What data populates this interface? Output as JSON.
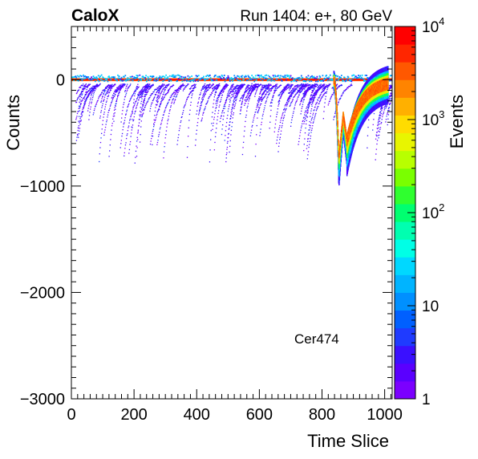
{
  "header": {
    "experiment": "CaloX",
    "run_info": "Run 1404: e+, 80 GeV"
  },
  "annotation": "Cer474",
  "chart_data": {
    "type": "heatmap",
    "xlabel": "Time Slice",
    "ylabel": "Counts",
    "zlabel": "Events",
    "xlim": [
      0,
      1024
    ],
    "ylim": [
      -3000,
      500
    ],
    "zlim": [
      1,
      10000
    ],
    "zscale": "log",
    "xticks": [
      0,
      200,
      400,
      600,
      800,
      1000
    ],
    "yticks": [
      0,
      -1000,
      -2000,
      -3000
    ],
    "xtick_labels": [
      "0",
      "200",
      "400",
      "600",
      "800",
      "1000"
    ],
    "ytick_labels": [
      "0",
      "−1000",
      "−2000",
      "−3000"
    ],
    "ztick_labels": {
      "1": "1",
      "10": "10",
      "100": "10",
      "1000": "10",
      "10000": "10"
    },
    "ztick_exponents": {
      "100": "2",
      "1000": "3",
      "10000": "4"
    },
    "baseline": {
      "y": 0,
      "x_range": [
        0,
        1024
      ],
      "z": 10000
    },
    "signal_pulse": {
      "peak_x": [
        855,
        880
      ],
      "main_peak": {
        "x": 855,
        "y_min": -920,
        "rise_start": 840
      },
      "second_peak": {
        "x": 878,
        "y_min": -720
      },
      "tail_end_x": 1000
    },
    "noise_pulses": {
      "x_range": [
        0,
        1024
      ],
      "depth_range": [
        -60,
        -780
      ],
      "typical_depth": -400
    },
    "palette": [
      "#7b00ff",
      "#5a00ff",
      "#3a10ff",
      "#1f3bff",
      "#0060ff",
      "#0090ff",
      "#00b4ff",
      "#00d8ff",
      "#00ffe6",
      "#00ffb0",
      "#00ff70",
      "#2fff2f",
      "#7aff00",
      "#b8ff00",
      "#e8f500",
      "#ffdc00",
      "#ffb000",
      "#ff8400",
      "#ff5800",
      "#ff2600",
      "#ff0000"
    ]
  }
}
